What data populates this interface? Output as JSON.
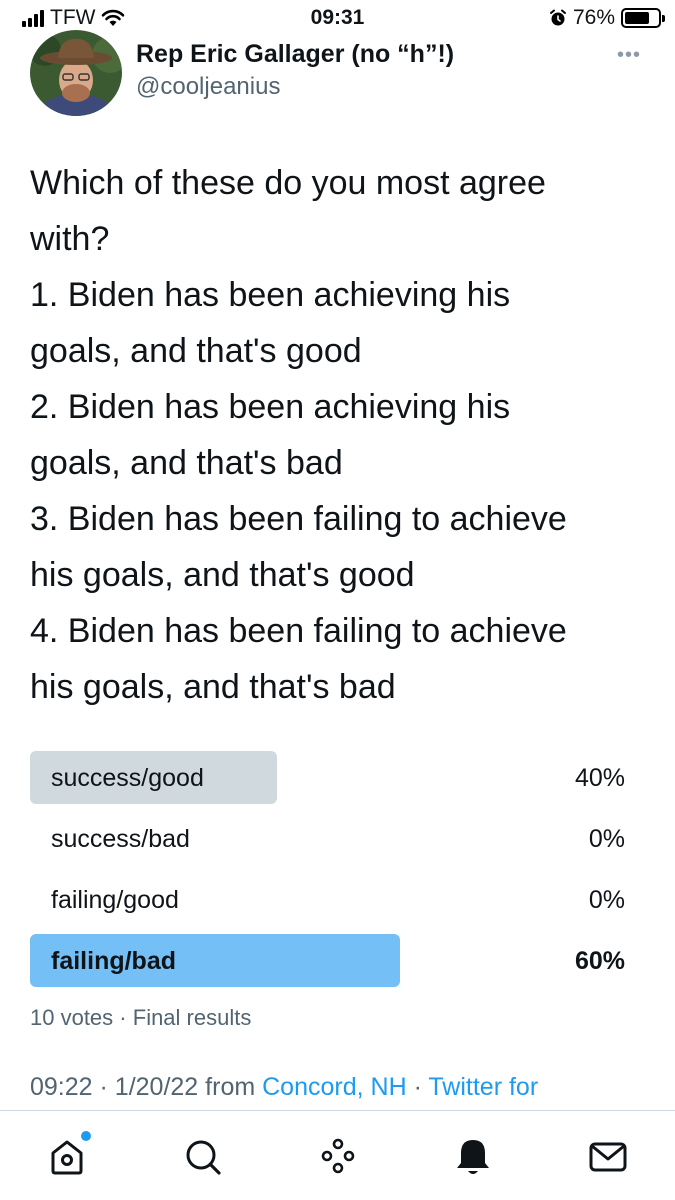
{
  "status_bar": {
    "carrier": "TFW",
    "time": "09:31",
    "battery": "76%",
    "battery_level": 0.76
  },
  "tweet": {
    "author_name": "Rep Eric Gallager (no “h”!)",
    "author_handle": "@cooljeanius",
    "text_lines": [
      "Which of these do you most agree",
      "with?",
      "1. Biden has been achieving his",
      "goals, and that's good",
      "2. Biden has been achieving his",
      "goals, and that's bad",
      "3. Biden has been failing to achieve",
      "his goals, and that's good",
      "4. Biden has been failing to achieve",
      "his goals, and that's bad"
    ],
    "poll": {
      "options": [
        {
          "label": "success/good",
          "percent_text": "40%",
          "percent": 40,
          "color": "#cfd9de"
        },
        {
          "label": "success/bad",
          "percent_text": "0%",
          "percent": 0,
          "color": "#cfd9de"
        },
        {
          "label": "failing/good",
          "percent_text": "0%",
          "percent": 0,
          "color": "#cfd9de"
        },
        {
          "label": "failing/bad",
          "percent_text": "60%",
          "percent": 60,
          "color": "#74bff5"
        }
      ],
      "votes": "10 votes",
      "separator": "·",
      "status": "Final results"
    },
    "meta": {
      "time": "09:22",
      "date": "1/20/22",
      "from_text": "from",
      "location": "Concord, NH",
      "source": "Twitter for"
    }
  },
  "tab_bar": {
    "items": [
      {
        "name": "home-icon"
      },
      {
        "name": "search-icon"
      },
      {
        "name": "spaces-icon"
      },
      {
        "name": "notifications-icon"
      },
      {
        "name": "messages-icon"
      }
    ]
  },
  "colors": {
    "accent": "#1d9bf0",
    "secondary_text": "#536471"
  }
}
